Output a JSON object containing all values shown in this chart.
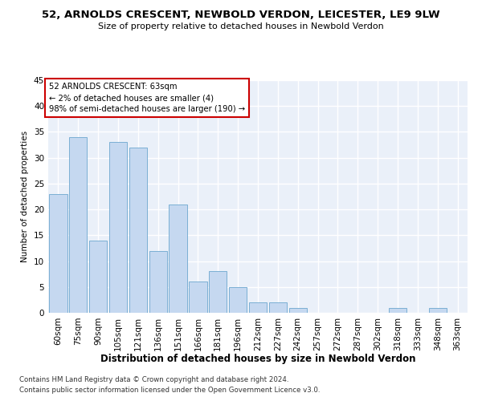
{
  "title": "52, ARNOLDS CRESCENT, NEWBOLD VERDON, LEICESTER, LE9 9LW",
  "subtitle": "Size of property relative to detached houses in Newbold Verdon",
  "xlabel": "Distribution of detached houses by size in Newbold Verdon",
  "ylabel": "Number of detached properties",
  "categories": [
    "60sqm",
    "75sqm",
    "90sqm",
    "105sqm",
    "121sqm",
    "136sqm",
    "151sqm",
    "166sqm",
    "181sqm",
    "196sqm",
    "212sqm",
    "227sqm",
    "242sqm",
    "257sqm",
    "272sqm",
    "287sqm",
    "302sqm",
    "318sqm",
    "333sqm",
    "348sqm",
    "363sqm"
  ],
  "values": [
    23,
    34,
    14,
    33,
    32,
    12,
    21,
    6,
    8,
    5,
    2,
    2,
    1,
    0,
    0,
    0,
    0,
    1,
    0,
    1,
    0
  ],
  "bar_color": "#c5d8f0",
  "bar_edge_color": "#7bafd4",
  "background_color": "#ffffff",
  "plot_bg_color": "#eaf0f9",
  "grid_color": "#ffffff",
  "ylim": [
    0,
    45
  ],
  "yticks": [
    0,
    5,
    10,
    15,
    20,
    25,
    30,
    35,
    40,
    45
  ],
  "annotation_box_text": "52 ARNOLDS CRESCENT: 63sqm\n← 2% of detached houses are smaller (4)\n98% of semi-detached houses are larger (190) →",
  "annotation_box_color": "#cc0000",
  "footer_line1": "Contains HM Land Registry data © Crown copyright and database right 2024.",
  "footer_line2": "Contains public sector information licensed under the Open Government Licence v3.0."
}
